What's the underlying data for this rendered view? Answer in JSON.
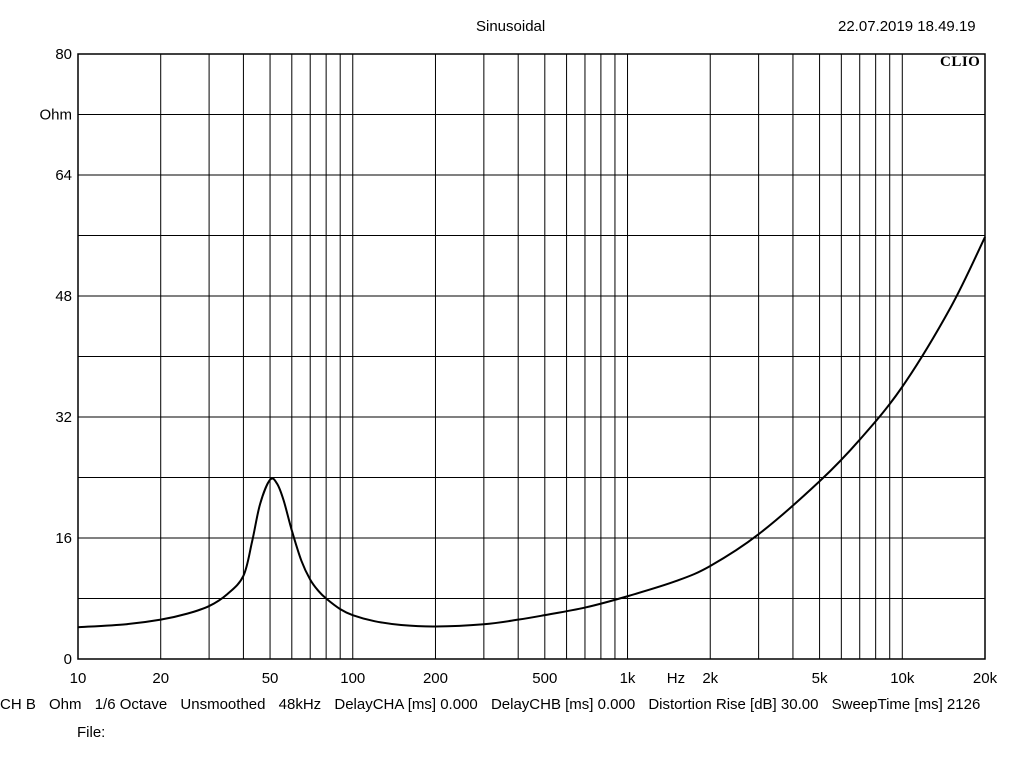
{
  "header": {
    "title": "Sinusoidal",
    "timestamp": "22.07.2019 18.49.19",
    "brand": "CLIO"
  },
  "chart_data": {
    "type": "line",
    "ylabel": "Ohm",
    "xlabel": "Hz",
    "x_scale": "log",
    "xlim": [
      10,
      20000
    ],
    "ylim": [
      0,
      80
    ],
    "grid": true,
    "x_tick_labels": [
      {
        "value": 10,
        "label": "10"
      },
      {
        "value": 20,
        "label": "20"
      },
      {
        "value": 50,
        "label": "50"
      },
      {
        "value": 100,
        "label": "100"
      },
      {
        "value": 200,
        "label": "200"
      },
      {
        "value": 500,
        "label": "500"
      },
      {
        "value": 1000,
        "label": "1k"
      },
      {
        "value": 2000,
        "label": "2k"
      },
      {
        "value": 5000,
        "label": "5k"
      },
      {
        "value": 10000,
        "label": "10k"
      },
      {
        "value": 20000,
        "label": "20k"
      }
    ],
    "y_tick_labels": [
      {
        "value": 0,
        "label": "0"
      },
      {
        "value": 16,
        "label": "16"
      },
      {
        "value": 32,
        "label": "32"
      },
      {
        "value": 48,
        "label": "48"
      },
      {
        "value": 64,
        "label": "64"
      },
      {
        "value": 80,
        "label": "80"
      }
    ],
    "y_gridlines": [
      0,
      8,
      16,
      24,
      32,
      40,
      48,
      56,
      64,
      72,
      80
    ],
    "series": [
      {
        "color": "#000000",
        "x": [
          10,
          15,
          20,
          25,
          30,
          35,
          40,
          43,
          46,
          50,
          53,
          56,
          60,
          65,
          70,
          75,
          80,
          90,
          100,
          120,
          150,
          200,
          300,
          400,
          500,
          700,
          1000,
          1500,
          2000,
          3000,
          5000,
          7000,
          10000,
          15000,
          20000
        ],
        "y": [
          4.2,
          4.6,
          5.2,
          6.0,
          7.0,
          8.6,
          11.0,
          15.5,
          20.5,
          23.7,
          23.2,
          21.0,
          17.0,
          13.0,
          10.5,
          9.0,
          8.0,
          6.6,
          5.8,
          5.0,
          4.5,
          4.3,
          4.6,
          5.2,
          5.8,
          6.8,
          8.3,
          10.3,
          12.3,
          16.5,
          23.5,
          29.0,
          36.0,
          46.5,
          55.8
        ]
      }
    ]
  },
  "footer": {
    "items": [
      "CH B",
      "Ohm",
      "1/6 Octave",
      "Unsmoothed",
      "48kHz",
      "DelayCHA [ms] 0.000",
      "DelayCHB [ms] 0.000",
      "Distortion Rise [dB] 30.00",
      "SweepTime [ms] 2126"
    ],
    "file_label": "File:"
  }
}
